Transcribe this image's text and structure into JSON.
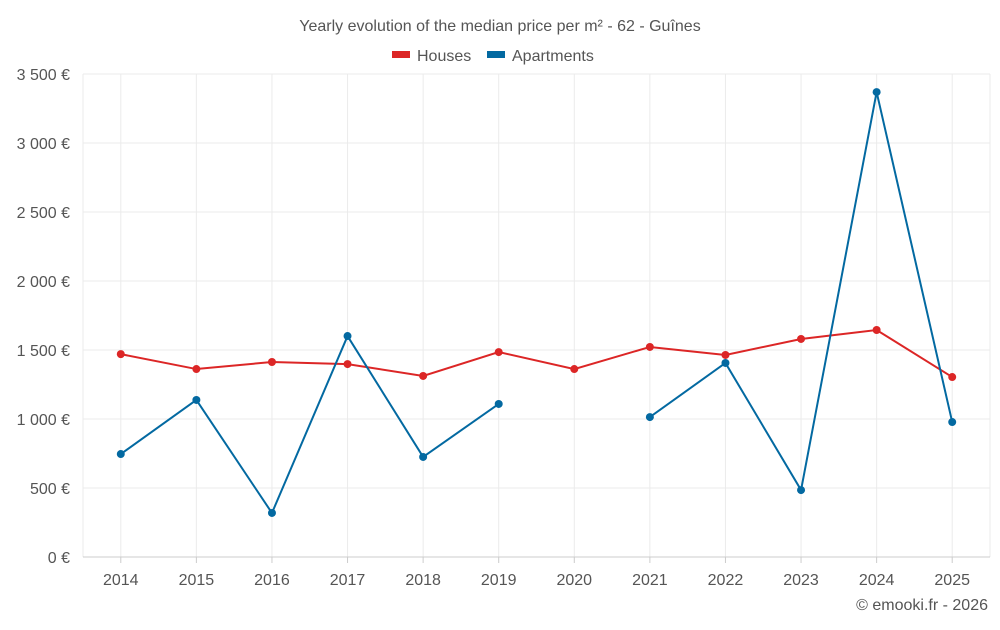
{
  "chart_data": {
    "type": "line",
    "title": "Yearly evolution of the median price per m² - 62 - Guînes",
    "xlabel": "",
    "ylabel": "",
    "categories": [
      "2014",
      "2015",
      "2016",
      "2017",
      "2018",
      "2019",
      "2020",
      "2021",
      "2022",
      "2023",
      "2024",
      "2025"
    ],
    "ylim": [
      0,
      3500
    ],
    "yticks": [
      0,
      500,
      1000,
      1500,
      2000,
      2500,
      3000,
      3500
    ],
    "ytick_labels": [
      "0 €",
      "500 €",
      "1 000 €",
      "1 500 €",
      "2 000 €",
      "2 500 €",
      "3 000 €",
      "3 500 €"
    ],
    "grid": true,
    "legend_position": "top-center",
    "series": [
      {
        "name": "Houses",
        "color": "#dc2626",
        "values": [
          1470,
          1362,
          1413,
          1398,
          1312,
          1485,
          1362,
          1522,
          1464,
          1580,
          1645,
          1304
        ]
      },
      {
        "name": "Apartments",
        "color": "#0369a1",
        "values": [
          746,
          1138,
          319,
          1601,
          725,
          1109,
          null,
          1014,
          1406,
          485,
          3369,
          978
        ]
      }
    ],
    "credit": "© emooki.fr - 2026"
  }
}
